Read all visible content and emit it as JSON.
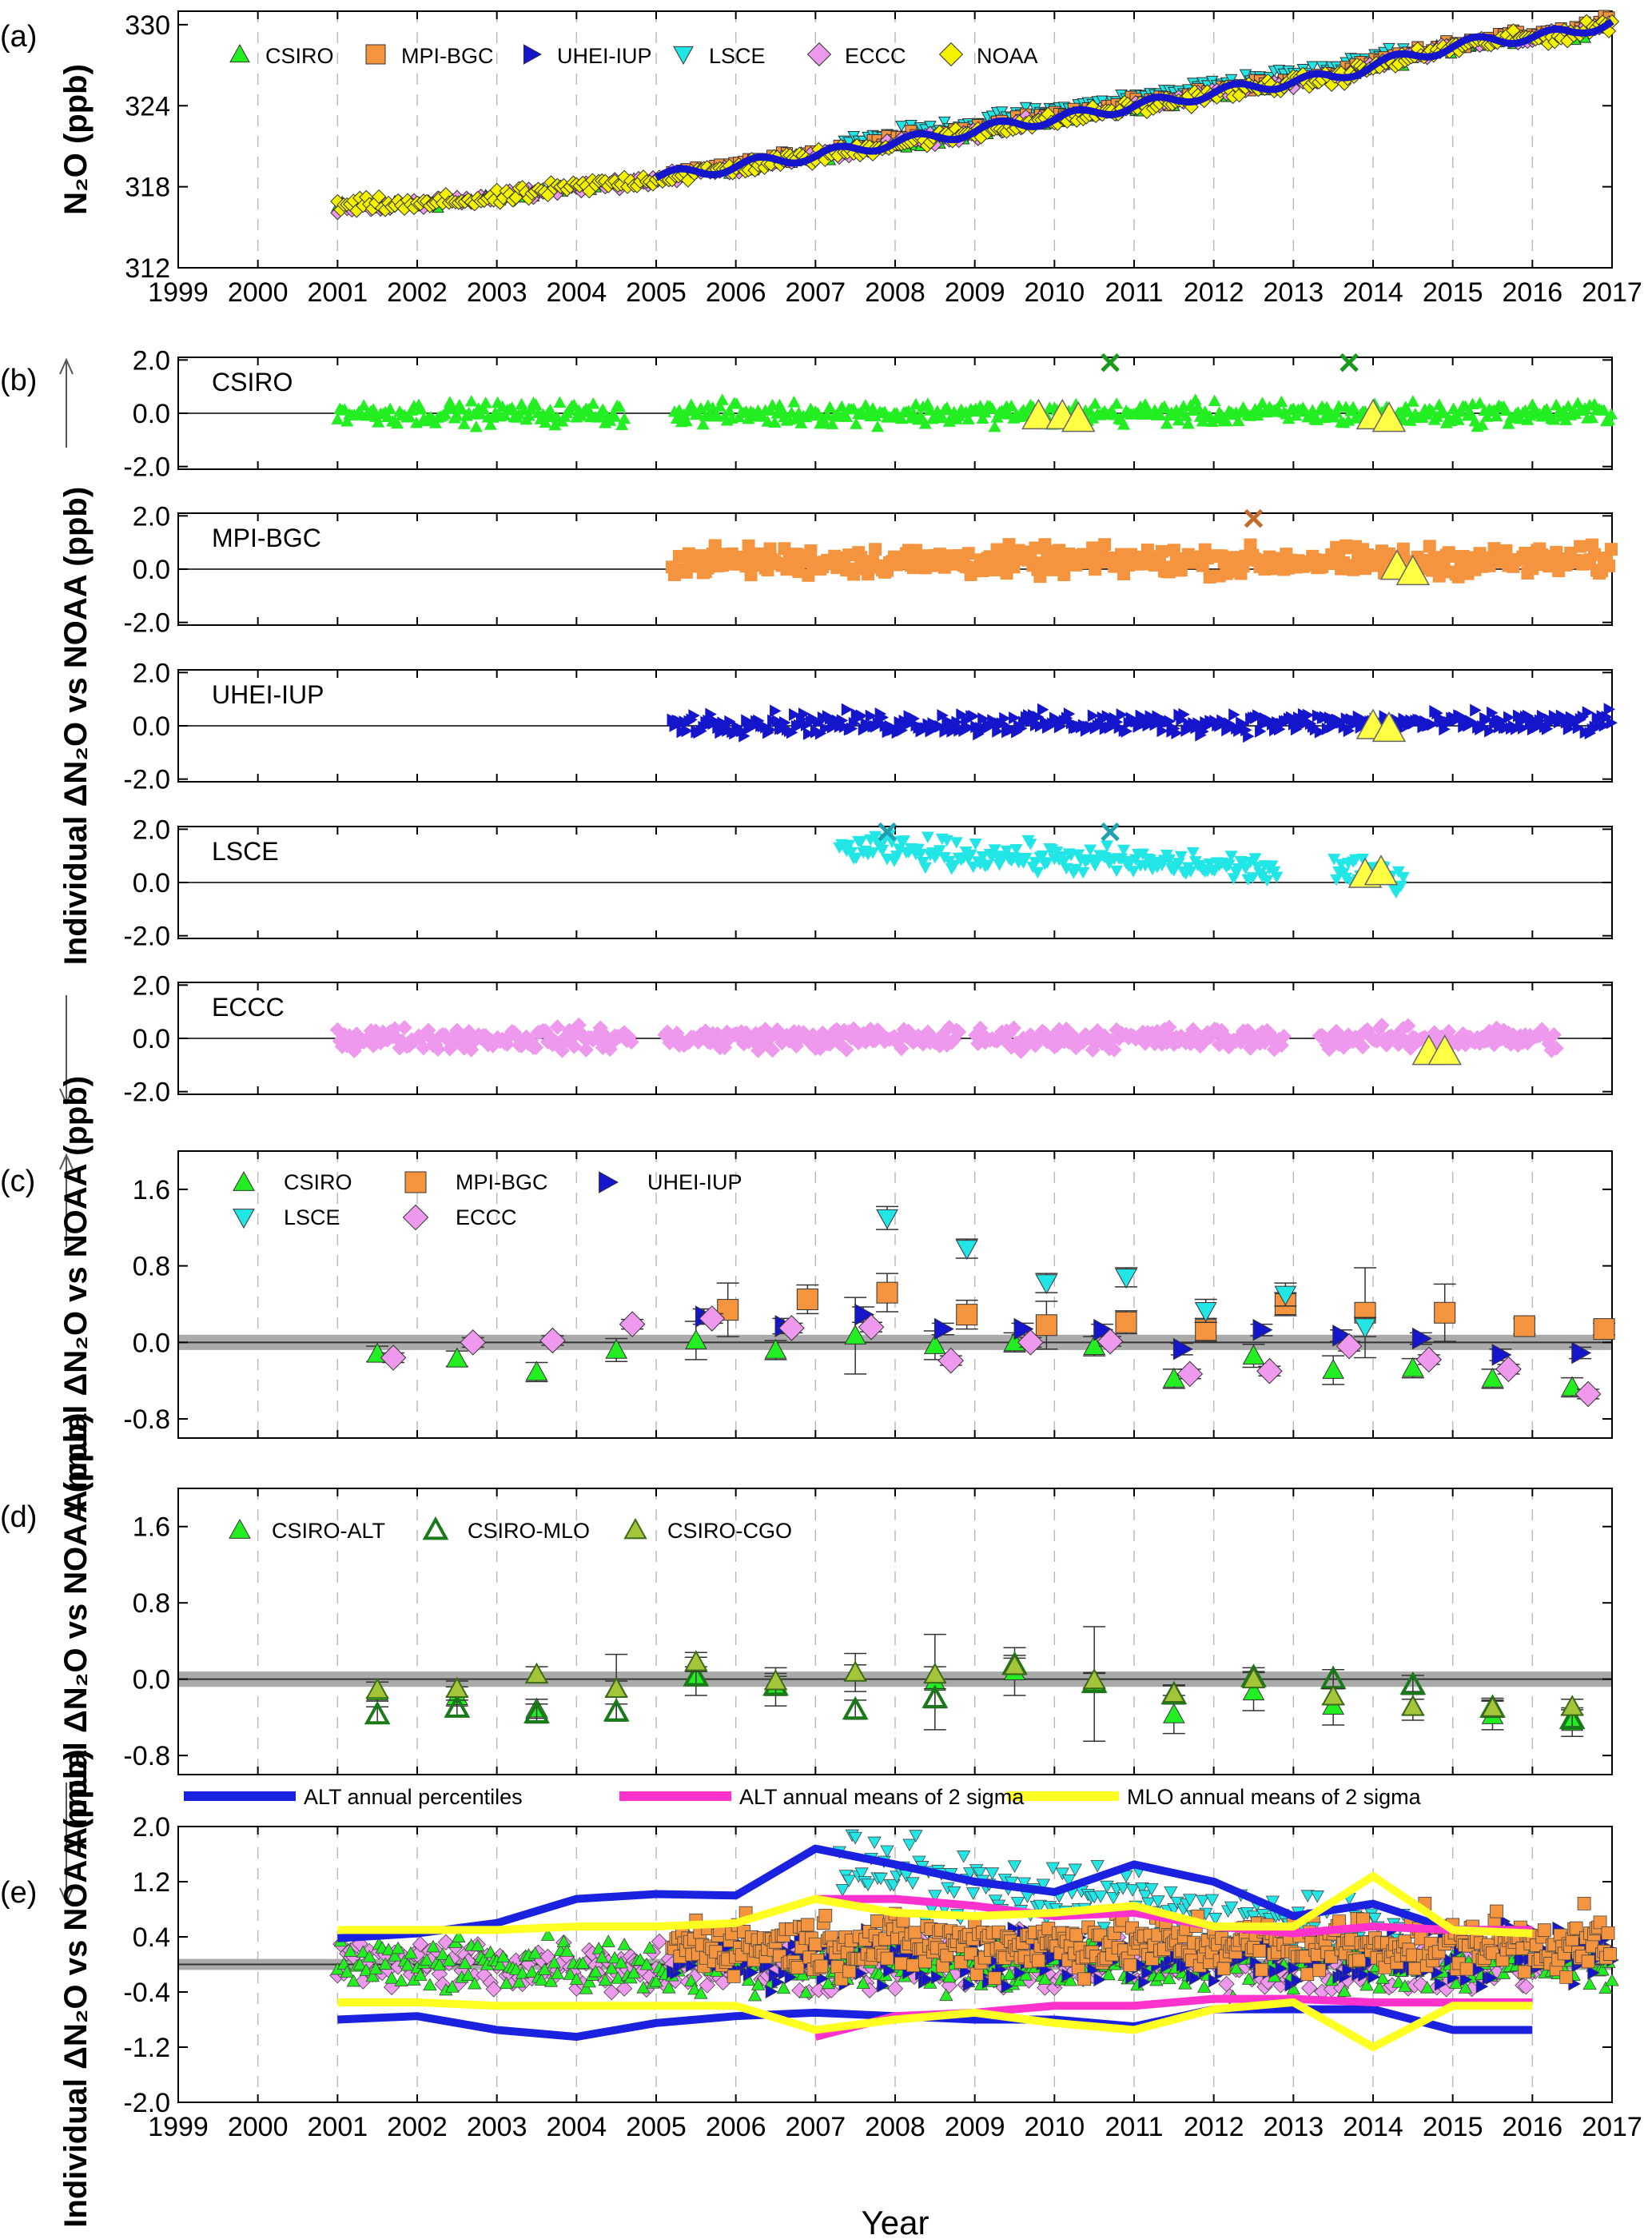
{
  "chart_data": [
    {
      "panel": "(a)",
      "type": "scatter",
      "ylabel": "N2O (ppb)",
      "xlim": [
        1999,
        2017
      ],
      "ylim": [
        312,
        331
      ],
      "yticks": [
        312,
        318,
        324,
        330
      ],
      "xticks": [
        1999,
        2000,
        2001,
        2002,
        2003,
        2004,
        2005,
        2006,
        2007,
        2008,
        2009,
        2010,
        2011,
        2012,
        2013,
        2014,
        2015,
        2016,
        2017
      ],
      "legend": [
        "CSIRO",
        "MPI-BGC",
        "UHEI-IUP",
        "LSCE",
        "ECCC",
        "NOAA"
      ],
      "series": [
        {
          "name": "NOAA",
          "x": [
            2001.0,
            2001.5,
            2002.0,
            2002.5,
            2003.0,
            2003.5,
            2004.0,
            2004.5,
            2005.0,
            2005.5,
            2006.0,
            2006.5,
            2007.0,
            2007.5,
            2008.0,
            2008.5,
            2009.0,
            2009.5,
            2010.0,
            2010.5,
            2011.0,
            2011.5,
            2012.0,
            2012.5,
            2013.0,
            2013.5,
            2014.0,
            2014.5,
            2015.0,
            2015.5,
            2016.0,
            2016.5,
            2017.0
          ],
          "y": [
            316.5,
            316.7,
            316.6,
            317.0,
            317.1,
            317.6,
            318.0,
            318.3,
            318.6,
            319.0,
            319.4,
            319.9,
            320.2,
            320.7,
            321.2,
            321.6,
            322.0,
            322.6,
            322.9,
            323.4,
            323.9,
            324.3,
            324.9,
            325.3,
            325.7,
            326.0,
            326.9,
            327.6,
            328.3,
            328.8,
            329.0,
            329.3,
            330.2
          ]
        },
        {
          "name": "UHEI-IUP",
          "x": [
            2005.0,
            2006.0,
            2007.0,
            2008.0,
            2009.0,
            2010.0,
            2011.0,
            2012.0,
            2013.0,
            2014.0,
            2015.0,
            2016.0,
            2017.0
          ],
          "y": [
            318.7,
            319.5,
            320.3,
            321.3,
            322.1,
            323.0,
            324.0,
            324.9,
            325.8,
            326.9,
            328.1,
            329.0,
            330.1
          ]
        }
      ]
    },
    {
      "panel": "(b)",
      "type": "scatter",
      "ylabel": "Individual ΔN2O vs NOAA (ppb)",
      "xlim": [
        1999,
        2017
      ],
      "subpanels": [
        {
          "name": "CSIRO",
          "color": "#22ee22",
          "yticks": [
            -2.0,
            0.0,
            2.0
          ],
          "x_range": [
            2001,
            2017
          ],
          "gaps": [
            [
              2004.6,
              2005.2
            ]
          ],
          "spread": 0.35,
          "flagged_x": [
            2010.7,
            2013.7
          ],
          "flagged_y": [
            1.9,
            1.9
          ],
          "highlight_x": [
            2009.8,
            2010.1,
            2010.3,
            2014.0,
            2014.2
          ],
          "highlight_y": [
            -0.1,
            -0.1,
            -0.2,
            -0.1,
            -0.2
          ]
        },
        {
          "name": "MPI-BGC",
          "color": "#f5943f",
          "yticks": [
            -2.0,
            0.0,
            2.0
          ],
          "x_range": [
            2005.2,
            2017
          ],
          "gaps": [],
          "spread": 0.45,
          "offset": 0.3,
          "flagged_x": [
            2012.5
          ],
          "flagged_y": [
            1.9
          ],
          "highlight_x": [
            2014.3,
            2014.5
          ],
          "highlight_y": [
            0.1,
            -0.1
          ]
        },
        {
          "name": "UHEI-IUP",
          "color": "#1515cc",
          "yticks": [
            -2.0,
            0.0,
            2.0
          ],
          "x_range": [
            2005.2,
            2017
          ],
          "gaps": [],
          "spread": 0.35,
          "offset": 0.1,
          "flagged_x": [],
          "flagged_y": [],
          "highlight_x": [
            2014.0,
            2014.2
          ],
          "highlight_y": [
            0.0,
            -0.1
          ]
        },
        {
          "name": "LSCE",
          "color": "#22e5e5",
          "yticks": [
            -2.0,
            0.0,
            2.0
          ],
          "x_range": [
            2007.3,
            2014.4
          ],
          "gaps": [
            [
              2012.8,
              2013.5
            ]
          ],
          "spread": 0.45,
          "offset": 0.8,
          "flagged_x": [
            2007.9,
            2010.7
          ],
          "flagged_y": [
            1.9,
            1.9
          ],
          "highlight_x": [
            2013.9,
            2014.1
          ],
          "highlight_y": [
            0.3,
            0.4
          ]
        },
        {
          "name": "ECCC",
          "color": "#ee99ee",
          "yticks": [
            -2.0,
            0.0,
            2.0
          ],
          "x_range": [
            2001,
            2016.3
          ],
          "gaps": [
            [
              2004.7,
              2005.1
            ],
            [
              2008.8,
              2009.0
            ],
            [
              2012.9,
              2013.3
            ]
          ],
          "spread": 0.35,
          "offset": 0.0,
          "flagged_x": [],
          "flagged_y": [],
          "highlight_x": [
            2014.7,
            2014.9
          ],
          "highlight_y": [
            -0.5,
            -0.5
          ]
        }
      ]
    },
    {
      "panel": "(c)",
      "type": "scatter",
      "ylabel": "Annual ΔN2O vs NOAA (ppb)",
      "xlim": [
        1999,
        2017
      ],
      "ylim": [
        -1.0,
        2.0
      ],
      "yticks": [
        -0.8,
        0.0,
        0.8,
        1.6
      ],
      "legend": [
        "CSIRO",
        "MPI-BGC",
        "UHEI-IUP",
        "LSCE",
        "ECCC"
      ],
      "series": [
        {
          "name": "CSIRO",
          "x": [
            2001.5,
            2002.5,
            2003.5,
            2004.5,
            2005.5,
            2006.5,
            2007.5,
            2008.5,
            2009.5,
            2010.5,
            2011.5,
            2012.5,
            2013.5,
            2014.5,
            2015.5,
            2016.5
          ],
          "y": [
            -0.12,
            -0.17,
            -0.31,
            -0.08,
            0.02,
            -0.08,
            0.07,
            -0.03,
            0.0,
            -0.04,
            -0.38,
            -0.14,
            -0.29,
            -0.27,
            -0.38,
            -0.47
          ],
          "err": [
            0.08,
            0.08,
            0.1,
            0.12,
            0.2,
            0.1,
            0.4,
            0.15,
            0.1,
            0.1,
            0.1,
            0.12,
            0.15,
            0.1,
            0.1,
            0.1
          ]
        },
        {
          "name": "MPI-BGC",
          "x": [
            2005.9,
            2006.9,
            2007.9,
            2008.9,
            2009.9,
            2010.9,
            2011.9,
            2012.9,
            2013.9,
            2014.9,
            2015.9,
            2016.9
          ],
          "y": [
            0.34,
            0.45,
            0.52,
            0.29,
            0.18,
            0.21,
            0.13,
            0.4,
            0.31,
            0.31,
            0.17,
            0.14
          ],
          "err": [
            0.28,
            0.15,
            0.2,
            0.15,
            0.25,
            0.12,
            0.12,
            0.12,
            0.47,
            0.3,
            0.08,
            0.06
          ]
        },
        {
          "name": "UHEI-IUP",
          "x": [
            2005.6,
            2006.6,
            2007.6,
            2008.6,
            2009.6,
            2010.6,
            2011.6,
            2012.6,
            2013.6,
            2014.6,
            2015.6,
            2016.6
          ],
          "y": [
            0.27,
            0.17,
            0.29,
            0.14,
            0.14,
            0.13,
            -0.07,
            0.13,
            0.07,
            0.04,
            -0.13,
            -0.11
          ],
          "err": [
            0.08,
            0.08,
            0.08,
            0.06,
            0.06,
            0.06,
            0.06,
            0.06,
            0.06,
            0.06,
            0.06,
            0.06
          ]
        },
        {
          "name": "LSCE",
          "x": [
            2007.9,
            2008.9,
            2009.9,
            2010.9,
            2011.9,
            2012.9,
            2013.9
          ],
          "y": [
            1.3,
            0.98,
            0.62,
            0.68,
            0.33,
            0.5,
            0.16
          ],
          "err": [
            0.12,
            0.1,
            0.1,
            0.1,
            0.12,
            0.12,
            0.1
          ]
        },
        {
          "name": "ECCC",
          "x": [
            2001.7,
            2002.7,
            2003.7,
            2004.7,
            2005.7,
            2006.7,
            2007.7,
            2008.7,
            2009.7,
            2010.7,
            2011.7,
            2012.7,
            2013.7,
            2014.7,
            2015.7,
            2016.7
          ],
          "y": [
            -0.16,
            0.0,
            0.02,
            0.19,
            0.25,
            0.15,
            0.16,
            -0.19,
            0.0,
            0.01,
            -0.33,
            -0.3,
            -0.04,
            -0.18,
            -0.28,
            -0.54
          ],
          "err": [
            0.05,
            0.05,
            0.05,
            0.05,
            0.05,
            0.05,
            0.05,
            0.05,
            0.05,
            0.05,
            0.05,
            0.05,
            0.05,
            0.05,
            0.05,
            0.05
          ]
        }
      ]
    },
    {
      "panel": "(d)",
      "type": "scatter",
      "ylabel": "Annual ΔN2O vs NOAA (ppb)",
      "xlim": [
        1999,
        2017
      ],
      "ylim": [
        -1.0,
        2.0
      ],
      "yticks": [
        -0.8,
        0.0,
        0.8,
        1.6
      ],
      "legend": [
        "CSIRO-ALT",
        "CSIRO-MLO",
        "CSIRO-CGO"
      ],
      "series": [
        {
          "name": "CSIRO-ALT",
          "x": [
            2001.5,
            2002.5,
            2003.5,
            2004.5,
            2005.5,
            2006.5,
            2007.5,
            2008.5,
            2009.5,
            2010.5,
            2011.5,
            2012.5,
            2013.5,
            2014.5,
            2015.5,
            2016.5
          ],
          "y": [
            -0.13,
            -0.18,
            -0.31,
            -0.09,
            0.03,
            -0.08,
            0.07,
            -0.03,
            0.08,
            -0.05,
            -0.37,
            -0.13,
            -0.28,
            -0.28,
            -0.38,
            -0.45
          ],
          "err": [
            0.1,
            0.1,
            0.1,
            0.35,
            0.2,
            0.2,
            0.2,
            0.5,
            0.25,
            0.6,
            0.2,
            0.2,
            0.2,
            0.15,
            0.15,
            0.15
          ]
        },
        {
          "name": "CSIRO-MLO",
          "x": [
            2001.5,
            2002.5,
            2003.5,
            2004.5,
            2005.5,
            2006.5,
            2007.5,
            2008.5,
            2009.5,
            2010.5,
            2011.5,
            2012.5,
            2013.5,
            2014.5,
            2015.5,
            2016.5
          ],
          "y": [
            -0.37,
            -0.3,
            -0.36,
            -0.34,
            0.03,
            -0.07,
            -0.32,
            -0.2,
            0.15,
            -0.04,
            -0.16,
            0.02,
            0.0,
            -0.06,
            -0.3,
            -0.42
          ],
          "err": [
            0.08,
            0.08,
            0.1,
            0.08,
            0.1,
            0.1,
            0.1,
            0.1,
            0.1,
            0.1,
            0.1,
            0.1,
            0.1,
            0.1,
            0.1,
            0.1
          ]
        },
        {
          "name": "CSIRO-CGO",
          "x": [
            2001.5,
            2002.5,
            2003.5,
            2004.5,
            2005.5,
            2006.5,
            2007.5,
            2008.5,
            2009.5,
            2010.5,
            2011.5,
            2012.5,
            2013.5,
            2014.5,
            2015.5,
            2016.5
          ],
          "y": [
            -0.11,
            -0.1,
            0.05,
            -0.1,
            0.18,
            -0.02,
            0.07,
            0.05,
            0.14,
            -0.01,
            -0.15,
            0.0,
            -0.18,
            -0.29,
            -0.3,
            -0.29
          ],
          "err": [
            0.08,
            0.08,
            0.08,
            0.08,
            0.1,
            0.08,
            0.08,
            0.08,
            0.08,
            0.08,
            0.08,
            0.08,
            0.08,
            0.08,
            0.08,
            0.08
          ]
        }
      ]
    },
    {
      "panel": "(e)",
      "type": "line",
      "ylabel": "Individual ΔN2O vs NOAA (ppb)",
      "xlabel": "Year",
      "xlim": [
        1999,
        2017
      ],
      "ylim": [
        -2.0,
        2.0
      ],
      "yticks": [
        -2.0,
        -1.2,
        -0.4,
        0.4,
        1.2,
        2.0
      ],
      "legend": [
        "ALT annual percentiles",
        "ALT annual means of 2 sigma",
        "MLO annual means of 2 sigma"
      ],
      "series": [
        {
          "name": "ALT annual percentiles",
          "x": [
            2001,
            2002,
            2003,
            2004,
            2005,
            2006,
            2007,
            2008,
            2009,
            2010,
            2011,
            2012,
            2013,
            2014,
            2015,
            2016
          ],
          "y": [
            0.38,
            0.45,
            0.6,
            0.95,
            1.02,
            1.0,
            1.68,
            1.45,
            1.2,
            1.05,
            1.45,
            1.2,
            0.7,
            0.88,
            0.5,
            0.5
          ]
        },
        {
          "name": "ALT annual percentiles",
          "x": [
            2001,
            2002,
            2003,
            2004,
            2005,
            2006,
            2007,
            2008,
            2009,
            2010,
            2011,
            2012,
            2013,
            2014,
            2015,
            2016
          ],
          "y": [
            -0.8,
            -0.75,
            -0.95,
            -1.05,
            -0.85,
            -0.75,
            -0.7,
            -0.75,
            -0.8,
            -0.8,
            -0.9,
            -0.65,
            -0.65,
            -0.65,
            -0.95,
            -0.95
          ]
        },
        {
          "name": "ALT annual means of 2 sigma",
          "x": [
            2007,
            2008,
            2009,
            2010,
            2011,
            2012,
            2013,
            2014,
            2015,
            2016
          ],
          "y": [
            0.95,
            0.95,
            0.85,
            0.7,
            0.75,
            0.55,
            0.45,
            0.55,
            0.5,
            0.5
          ]
        },
        {
          "name": "ALT annual means of 2 sigma",
          "x": [
            2007,
            2008,
            2009,
            2010,
            2011,
            2012,
            2013,
            2014,
            2015,
            2016
          ],
          "y": [
            -1.05,
            -0.75,
            -0.7,
            -0.6,
            -0.6,
            -0.5,
            -0.5,
            -0.55,
            -0.55,
            -0.55
          ]
        },
        {
          "name": "MLO annual means of 2 sigma",
          "x": [
            2001,
            2002,
            2003,
            2004,
            2005,
            2006,
            2007,
            2008,
            2009,
            2010,
            2011,
            2012,
            2013,
            2014,
            2015,
            2016
          ],
          "y": [
            0.5,
            0.5,
            0.5,
            0.55,
            0.55,
            0.6,
            0.95,
            0.75,
            0.7,
            0.75,
            0.85,
            0.55,
            0.55,
            1.28,
            0.5,
            0.45
          ]
        },
        {
          "name": "MLO annual means of 2 sigma",
          "x": [
            2001,
            2002,
            2003,
            2004,
            2005,
            2006,
            2007,
            2008,
            2009,
            2010,
            2011,
            2012,
            2013,
            2014,
            2015,
            2016
          ],
          "y": [
            -0.55,
            -0.55,
            -0.6,
            -0.6,
            -0.6,
            -0.6,
            -0.95,
            -0.8,
            -0.7,
            -0.85,
            -0.95,
            -0.65,
            -0.55,
            -1.2,
            -0.6,
            -0.6
          ]
        }
      ],
      "scatter_sources": [
        "CSIRO",
        "MPI-BGC",
        "UHEI-IUP",
        "LSCE",
        "ECCC"
      ]
    }
  ],
  "colors": {
    "CSIRO": "#22ee22",
    "MPI-BGC": "#f5943f",
    "UHEI-IUP": "#1515cc",
    "LSCE": "#22e5e5",
    "ECCC": "#ee99ee",
    "NOAA": "#f5f200",
    "ALT_percentiles": "#1a22e0",
    "ALT_2sigma": "#ff33cc",
    "MLO_2sigma": "#ffff22",
    "highlight": "#ffff44"
  }
}
